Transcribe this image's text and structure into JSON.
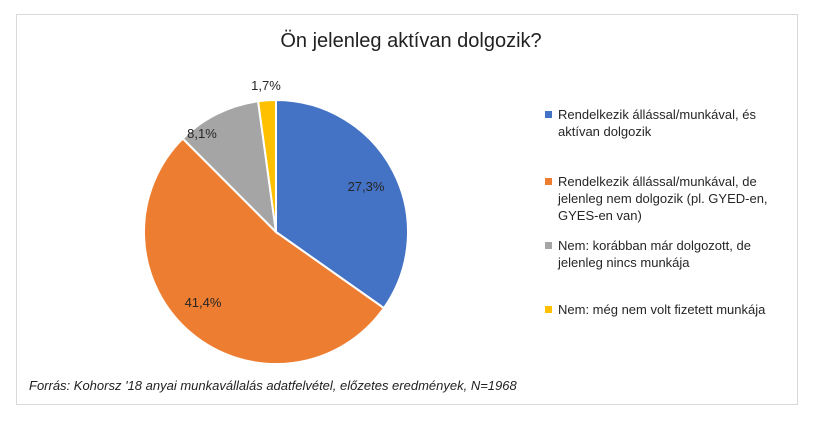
{
  "chart_data": {
    "type": "pie",
    "title": "Ön jelenleg aktívan dolgozik?",
    "slices": [
      {
        "label": "Rendelkezik állással/munkával, és aktívan dolgozik",
        "value": 27.3,
        "value_label": "27,3%",
        "color": "#4472c4"
      },
      {
        "label": "Rendelkezik állással/munkával, de jelenleg nem dolgozik (pl. GYED-en, GYES-en van)",
        "value": 41.4,
        "value_label": "41,4%",
        "color": "#ed7d31"
      },
      {
        "label": "Nem: korábban már dolgozott, de jelenleg nincs munkája",
        "value": 8.1,
        "value_label": "8,1%",
        "color": "#a5a5a5"
      },
      {
        "label": "Nem: még nem volt fizetett munkája",
        "value": 1.7,
        "value_label": "1,7%",
        "color": "#ffc000"
      }
    ],
    "legend_position": "right",
    "source": "Forrás: Kohorsz '18 anyai munkavállalás adatfelvétel, előzetes eredmények, N=1968"
  }
}
